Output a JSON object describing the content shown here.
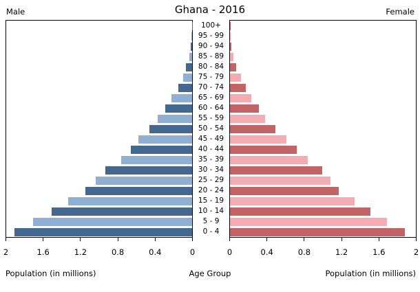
{
  "header": {
    "title": "Ghana - 2016",
    "left_label": "Male",
    "right_label": "Female"
  },
  "footer": {
    "left_caption": "Population (in millions)",
    "center_caption": "Age Group",
    "right_caption": "Population (in millions)"
  },
  "colors": {
    "male_dark": "#44688F",
    "male_light": "#8FAFD3",
    "female_dark": "#C26365",
    "female_light": "#F3ACB1",
    "axis": "#000000"
  },
  "axis": {
    "tick_values": [
      0,
      0.4,
      0.8,
      1.2,
      1.6,
      2
    ],
    "tick_labels": [
      "0",
      "0.4",
      "0.8",
      "1.2",
      "1.6",
      "2"
    ],
    "max": 2
  },
  "chart_data": {
    "type": "bar",
    "subtype": "population-pyramid",
    "title": "Ghana - 2016",
    "xlabel": "Population (in millions)",
    "ylabel": "Age Group",
    "xlim": [
      0,
      2
    ],
    "grid": false,
    "categories_top_to_bottom": [
      "100+",
      "95 - 99",
      "90 - 94",
      "85 - 89",
      "80 - 84",
      "75 - 79",
      "70 - 74",
      "65 - 69",
      "60 - 64",
      "55 - 59",
      "50 - 54",
      "45 - 49",
      "40 - 44",
      "35 - 39",
      "30 - 34",
      "25 - 29",
      "20 - 24",
      "15 - 19",
      "10 - 14",
      "5 - 9",
      "0 - 4"
    ],
    "series": [
      {
        "name": "Male",
        "side": "left",
        "values": [
          0.002,
          0.006,
          0.013,
          0.03,
          0.07,
          0.1,
          0.15,
          0.22,
          0.29,
          0.37,
          0.46,
          0.58,
          0.66,
          0.76,
          0.93,
          1.04,
          1.15,
          1.33,
          1.51,
          1.71,
          1.91
        ]
      },
      {
        "name": "Female",
        "side": "right",
        "values": [
          0.003,
          0.008,
          0.018,
          0.04,
          0.07,
          0.12,
          0.17,
          0.23,
          0.31,
          0.38,
          0.49,
          0.61,
          0.72,
          0.84,
          0.99,
          1.08,
          1.17,
          1.34,
          1.51,
          1.69,
          1.88
        ]
      }
    ]
  }
}
